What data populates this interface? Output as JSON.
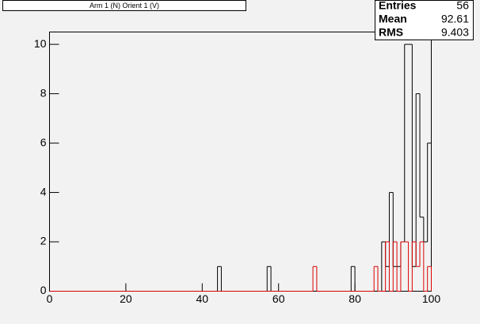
{
  "chart_data": {
    "type": "histogram",
    "title": "Arm 1 (N) Orient 1 (V)",
    "bins": [
      0,
      1,
      2,
      3,
      4,
      5,
      6,
      7,
      8,
      9,
      10,
      11,
      12,
      13,
      14,
      15,
      16,
      17,
      18,
      19,
      20,
      21,
      22,
      23,
      24,
      25,
      26,
      27,
      28,
      29,
      30,
      31,
      32,
      33,
      34,
      35,
      36,
      37,
      38,
      39,
      40,
      41,
      42,
      43,
      44,
      45,
      46,
      47,
      48,
      49,
      50,
      51,
      52,
      53,
      54,
      55,
      56,
      57,
      58,
      59,
      60,
      61,
      62,
      63,
      64,
      65,
      66,
      67,
      68,
      69,
      70,
      71,
      72,
      73,
      74,
      75,
      76,
      77,
      78,
      79,
      80,
      81,
      82,
      83,
      84,
      85,
      86,
      87,
      88,
      89,
      90,
      91,
      92,
      93,
      94,
      95,
      96,
      97,
      98,
      99,
      100
    ],
    "series": [
      {
        "color": "#000000",
        "values": [
          0,
          0,
          0,
          0,
          0,
          0,
          0,
          0,
          0,
          0,
          0,
          0,
          0,
          0,
          0,
          0,
          0,
          0,
          0,
          0,
          0,
          0,
          0,
          0,
          0,
          0,
          0,
          0,
          0,
          0,
          0,
          0,
          0,
          0,
          0,
          0,
          0,
          0,
          0,
          0,
          0,
          0,
          0,
          0,
          1,
          0,
          0,
          0,
          0,
          0,
          0,
          0,
          0,
          0,
          0,
          0,
          0,
          1,
          0,
          0,
          0,
          0,
          0,
          0,
          0,
          0,
          0,
          0,
          0,
          0,
          0,
          0,
          0,
          0,
          0,
          0,
          0,
          0,
          0,
          1,
          0,
          0,
          0,
          0,
          0,
          0,
          0,
          2,
          1,
          4,
          1,
          1,
          2,
          10,
          10,
          1,
          8,
          3,
          2,
          6
        ]
      },
      {
        "color": "#dd0000",
        "values": [
          0,
          0,
          0,
          0,
          0,
          0,
          0,
          0,
          0,
          0,
          0,
          0,
          0,
          0,
          0,
          0,
          0,
          0,
          0,
          0,
          0,
          0,
          0,
          0,
          0,
          0,
          0,
          0,
          0,
          0,
          0,
          0,
          0,
          0,
          0,
          0,
          0,
          0,
          0,
          0,
          0,
          0,
          0,
          0,
          0,
          0,
          0,
          0,
          0,
          0,
          0,
          0,
          0,
          0,
          0,
          0,
          0,
          0,
          0,
          0,
          0,
          0,
          0,
          0,
          0,
          0,
          0,
          0,
          0,
          1,
          0,
          0,
          0,
          0,
          0,
          0,
          0,
          0,
          0,
          0,
          0,
          0,
          0,
          0,
          0,
          1,
          0,
          0,
          2,
          0,
          2,
          0,
          2,
          2,
          0,
          2,
          1,
          2,
          0,
          1
        ]
      }
    ],
    "xlim": [
      0,
      100
    ],
    "xticks": [
      0,
      20,
      40,
      60,
      80,
      100
    ],
    "ylim": [
      0,
      10.5
    ],
    "yticks": [
      0,
      2,
      4,
      6,
      8,
      10
    ],
    "stats": [
      {
        "label": "Entries",
        "value": 56
      },
      {
        "label": "Mean",
        "value": 92.61
      },
      {
        "label": "RMS",
        "value": 9.403
      }
    ]
  }
}
